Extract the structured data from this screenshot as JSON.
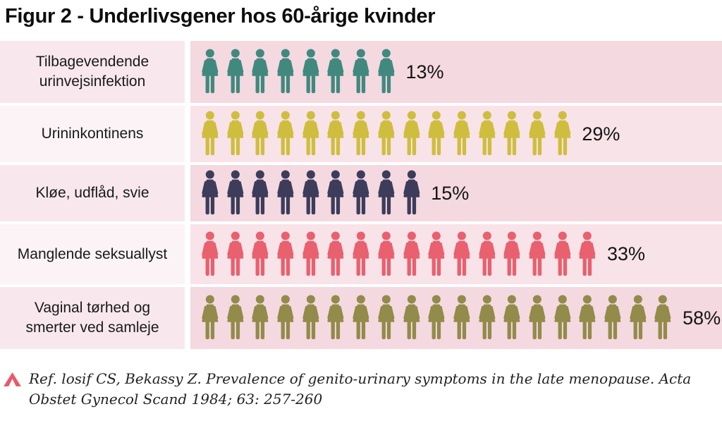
{
  "title": "Figur 2 - Underlivsgener hos 60-årige kvinder",
  "chart_data": {
    "type": "bar",
    "variant": "pictogram",
    "title": "Figur 2 - Underlivsgener hos 60-årige kvinder",
    "categories": [
      "Tilbagevendende urinvejsinfektion",
      "Urininkontinens",
      "Kløe, udflåd, svie",
      "Manglende seksuallyst",
      "Vaginal tørhed og smerter ved samleje"
    ],
    "values": [
      13,
      29,
      15,
      33,
      58
    ],
    "value_labels": [
      "13%",
      "29%",
      "15%",
      "33%",
      "58%"
    ],
    "icon_counts": [
      8,
      15,
      9,
      16,
      19
    ],
    "icon_colors": [
      "#41897e",
      "#cfbe3e",
      "#3d3d5b",
      "#e9606e",
      "#938b49"
    ],
    "icon": "woman-pictogram",
    "legend": "none",
    "xlabel": "",
    "ylabel": ""
  },
  "colors": {
    "page_bg": "#ffffff",
    "label_col_odd": "#f8e8ee",
    "label_col_even": "#fcf3f6",
    "chart_col_odd": "#f4d9e1",
    "chart_col_even": "#f8e3e9",
    "text": "#1a1a1a",
    "footer_icon": "#e85a6b"
  },
  "footer": {
    "icon": "caret-up-icon",
    "icon_color": "#e85a6b",
    "reference": "Ref. losif CS, Bekassy Z. Prevalence of genito-urinary symptoms in the late menopause. Acta Obstet Gynecol Scand 1984; 63: 257-260",
    "lines": [
      "Ref. losif CS, Bekassy Z. Prevalence of genito-urinary symptoms in the late menopause. Acta",
      "Obstet Gynecol Scand 1984; 63: 257-260"
    ]
  }
}
